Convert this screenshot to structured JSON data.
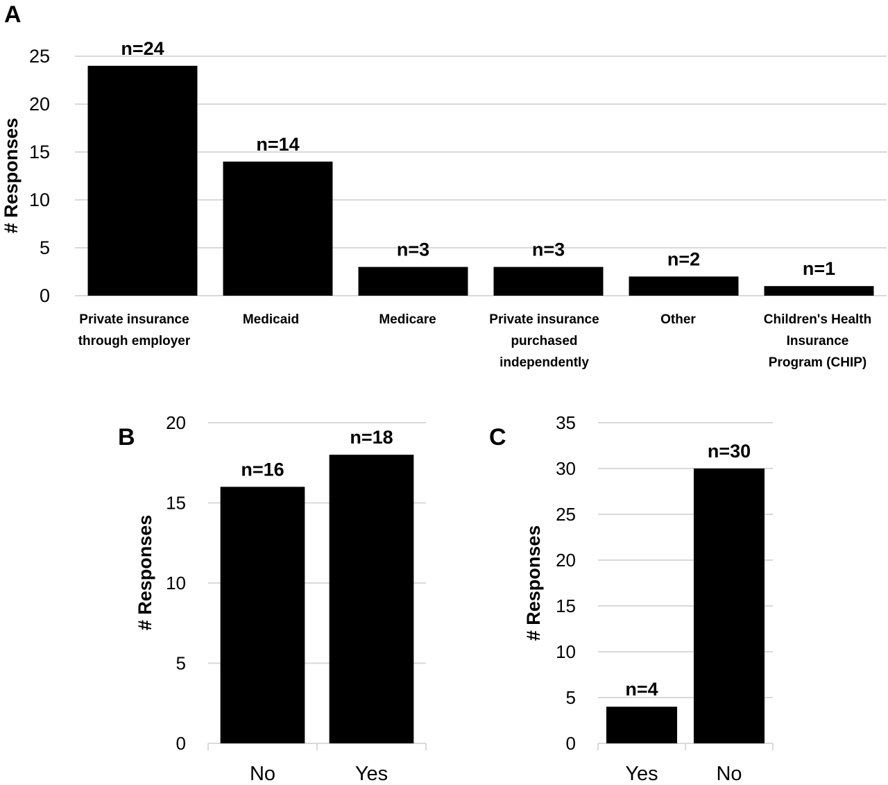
{
  "chart_data": [
    {
      "panel": "A",
      "type": "bar",
      "ylabel": "# Responses",
      "ylim": [
        0,
        25
      ],
      "yticks": [
        0,
        5,
        10,
        15,
        20,
        25
      ],
      "grid": true,
      "categories": [
        [
          "Private insurance",
          "through employer"
        ],
        [
          "Medicaid"
        ],
        [
          "Medicare"
        ],
        [
          "Private insurance",
          "purchased",
          "independently"
        ],
        [
          "Other"
        ],
        [
          "Children's Health",
          "Insurance",
          "Program (CHIP)"
        ]
      ],
      "values": [
        24,
        14,
        3,
        3,
        2,
        1
      ],
      "data_labels": [
        "n=24",
        "n=14",
        "n=3",
        "n=3",
        "n=2",
        "n=1"
      ]
    },
    {
      "panel": "B",
      "type": "bar",
      "ylabel": "# Responses",
      "ylim": [
        0,
        20
      ],
      "yticks": [
        0,
        5,
        10,
        15,
        20
      ],
      "grid": true,
      "categories": [
        [
          "No"
        ],
        [
          "Yes"
        ]
      ],
      "values": [
        16,
        18
      ],
      "data_labels": [
        "n=16",
        "n=18"
      ]
    },
    {
      "panel": "C",
      "type": "bar",
      "ylabel": "# Responses",
      "ylim": [
        0,
        35
      ],
      "yticks": [
        0,
        5,
        10,
        15,
        20,
        25,
        30,
        35
      ],
      "grid": true,
      "categories": [
        [
          "Yes"
        ],
        [
          "No"
        ]
      ],
      "values": [
        4,
        30
      ],
      "data_labels": [
        "n=4",
        "n=30"
      ]
    }
  ],
  "colors": {
    "bar": "#000000",
    "grid": "#d9d9d9"
  }
}
